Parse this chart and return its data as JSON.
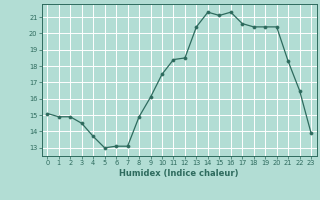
{
  "x": [
    0,
    1,
    2,
    3,
    4,
    5,
    6,
    7,
    8,
    9,
    10,
    11,
    12,
    13,
    14,
    15,
    16,
    17,
    18,
    19,
    20,
    21,
    22,
    23
  ],
  "y": [
    15.1,
    14.9,
    14.9,
    14.5,
    13.7,
    13.0,
    13.1,
    13.1,
    14.9,
    16.1,
    17.5,
    18.4,
    18.5,
    20.4,
    21.3,
    21.1,
    21.3,
    20.6,
    20.4,
    20.4,
    20.4,
    18.3,
    16.5,
    13.9
  ],
  "xlabel": "Humidex (Indice chaleur)",
  "xlim": [
    -0.5,
    23.5
  ],
  "ylim": [
    12.5,
    21.8
  ],
  "yticks": [
    13,
    14,
    15,
    16,
    17,
    18,
    19,
    20,
    21
  ],
  "xticks": [
    0,
    1,
    2,
    3,
    4,
    5,
    6,
    7,
    8,
    9,
    10,
    11,
    12,
    13,
    14,
    15,
    16,
    17,
    18,
    19,
    20,
    21,
    22,
    23
  ],
  "line_color": "#2e6b5e",
  "marker_color": "#2e6b5e",
  "bg_color": "#b2ddd4",
  "grid_color": "#ffffff",
  "tick_label_color": "#2e6b5e",
  "xlabel_color": "#2e6b5e"
}
